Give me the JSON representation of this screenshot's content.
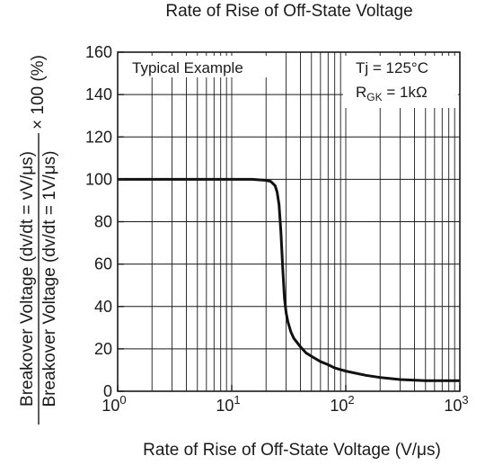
{
  "chart_data": {
    "type": "line",
    "title": "Rate of Rise of Off-State Voltage",
    "xlabel": "Rate of Rise of Off-State Voltage  (V/μs)",
    "ylabel": {
      "numerator": "Breakover Voltage (dv/dt = vV/μs)",
      "denominator": "Breakover Voltage (dv/dt = 1V/μs)",
      "suffix": "× 100 (%)"
    },
    "x_scale": "log",
    "xlim": [
      1,
      1000
    ],
    "ylim": [
      0,
      160
    ],
    "grid": true,
    "x_ticks": [
      {
        "base": "10",
        "exp": "0"
      },
      {
        "base": "10",
        "exp": "1"
      },
      {
        "base": "10",
        "exp": "2"
      },
      {
        "base": "10",
        "exp": "3"
      }
    ],
    "y_ticks": [
      "0",
      "20",
      "40",
      "60",
      "80",
      "100",
      "120",
      "140",
      "160"
    ],
    "annotations": {
      "left": "Typical Example",
      "right_line1": "Tj = 125°C",
      "right_line2_main": "R",
      "right_line2_sub": "GK",
      "right_line2_rest": " = 1kΩ"
    },
    "series": [
      {
        "x": [
          1,
          2,
          5,
          10,
          15,
          20,
          22,
          24,
          25,
          26,
          27,
          28,
          29,
          30,
          31,
          33,
          35,
          40,
          45,
          50,
          60,
          70,
          80,
          100,
          150,
          200,
          300,
          500,
          700,
          1000
        ],
        "y": [
          100,
          100,
          100,
          100,
          100,
          99.5,
          99,
          97,
          94,
          88,
          75,
          58,
          44,
          37,
          33,
          28,
          25,
          21,
          18,
          16.5,
          14,
          12.5,
          11,
          9.5,
          7.5,
          6.5,
          5.5,
          5,
          5,
          5
        ]
      }
    ]
  }
}
